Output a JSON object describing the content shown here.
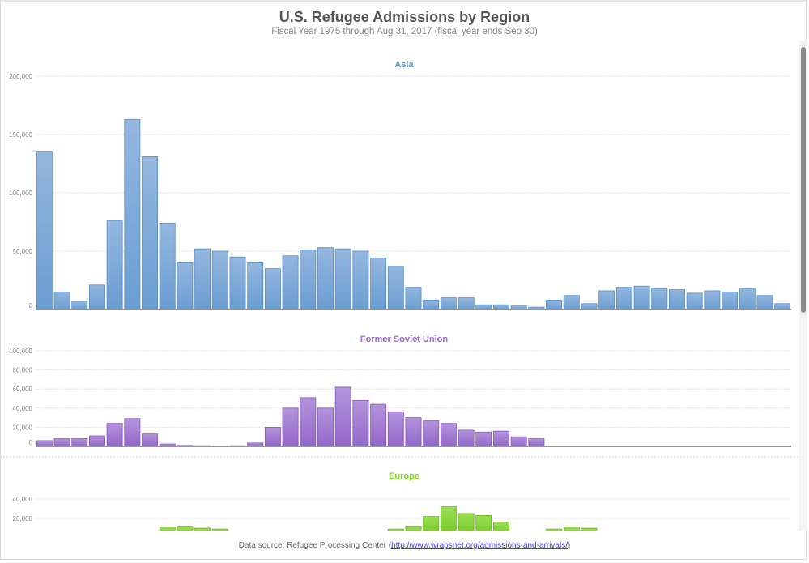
{
  "title": "U.S. Refugee Admissions by Region",
  "subtitle": "Fiscal Year 1975 through Aug 31, 2017 (fiscal year ends Sep 30)",
  "footer": {
    "prefix": "Data source: Refugee Processing Center (",
    "link": "http://www.wrapsnet.org/admissions-and-arrivals/",
    "suffix": ")"
  },
  "chart_data": [
    {
      "type": "bar",
      "title": "Asia",
      "color": "#6b9fd4",
      "x_start": 1975,
      "x_end": 2017,
      "ylim": [
        0,
        200000
      ],
      "ticks": [
        "0",
        "50,000",
        "100,000",
        "150,000",
        "200,000"
      ],
      "tick_values": [
        0,
        50000,
        100000,
        150000,
        200000
      ],
      "values": [
        135000,
        15000,
        7000,
        21000,
        76000,
        163000,
        131000,
        74000,
        40000,
        52000,
        50000,
        45000,
        40000,
        35000,
        46000,
        51000,
        53000,
        52000,
        50000,
        44000,
        37000,
        19000,
        8000,
        10000,
        10000,
        4000,
        4000,
        3000,
        2000,
        8000,
        12000,
        5000,
        16000,
        19000,
        20000,
        18000,
        17000,
        14000,
        16000,
        15000,
        18000,
        12000,
        5000
      ]
    },
    {
      "type": "bar",
      "title": "Former Soviet Union",
      "color": "#9b6bd0",
      "x_start": 1975,
      "x_end": 2017,
      "ylim": [
        0,
        100000
      ],
      "ticks": [
        "0",
        "20,000",
        "40,000",
        "60,000",
        "80,000",
        "100,000"
      ],
      "tick_values": [
        0,
        20000,
        40000,
        60000,
        80000,
        100000
      ],
      "values": [
        6000,
        8000,
        8000,
        11000,
        24000,
        29000,
        13000,
        2500,
        1000,
        700,
        500,
        700,
        3500,
        20000,
        40000,
        51000,
        40000,
        62000,
        48000,
        44000,
        36000,
        30000,
        27000,
        24000,
        17000,
        15000,
        16000,
        10000,
        8000,
        0,
        0,
        0,
        0,
        0,
        0,
        0,
        0,
        0,
        0,
        0,
        0,
        0,
        0
      ]
    },
    {
      "type": "bar",
      "title": "Europe",
      "color": "#7ed321",
      "x_start": 1975,
      "x_end": 2017,
      "ylim": [
        0,
        40000
      ],
      "ticks": [
        "20,000",
        "40,000"
      ],
      "tick_values": [
        20000,
        40000
      ],
      "values": [
        0,
        0,
        0,
        0,
        0,
        0,
        0,
        11000,
        12000,
        10000,
        9000,
        0,
        0,
        0,
        0,
        0,
        0,
        0,
        0,
        0,
        9000,
        12000,
        22000,
        32000,
        25000,
        23000,
        16000,
        0,
        0,
        9000,
        11000,
        10000,
        0,
        0,
        0,
        0,
        0,
        0,
        0,
        0,
        0,
        0,
        0
      ]
    }
  ]
}
